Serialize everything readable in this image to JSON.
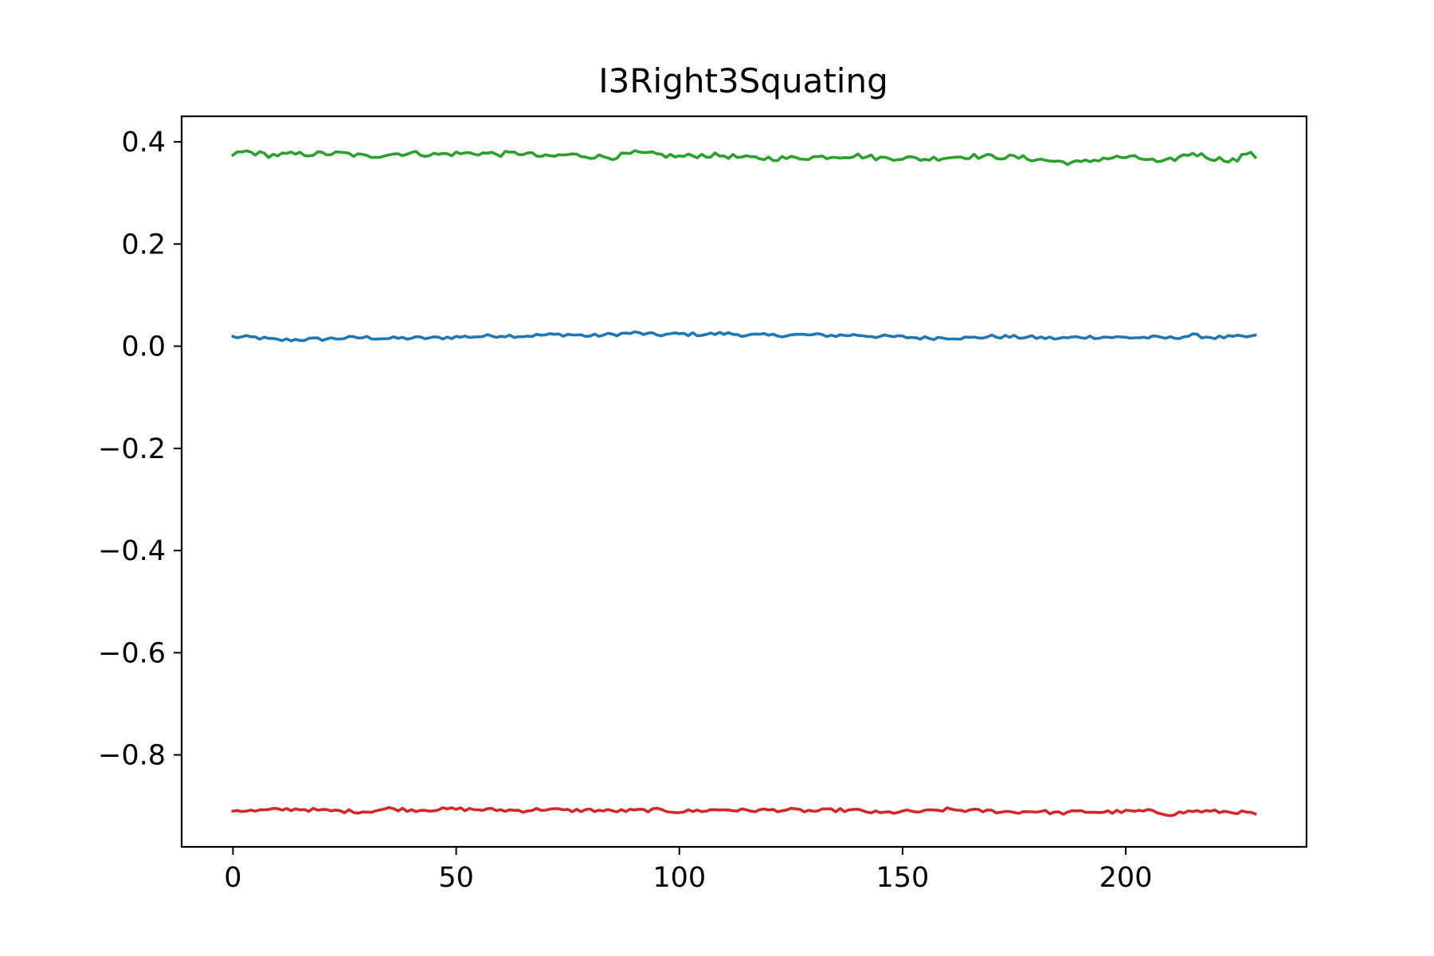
{
  "chart_data": {
    "type": "line",
    "title": "I3Right3Squating",
    "xlabel": "",
    "ylabel": "",
    "xlim": [
      -11.5,
      240.5
    ],
    "ylim": [
      -0.98,
      0.45
    ],
    "x_ticks": [
      0,
      50,
      100,
      150,
      200
    ],
    "x_tick_labels": [
      "0",
      "50",
      "100",
      "150",
      "200"
    ],
    "y_ticks": [
      0.4,
      0.2,
      0.0,
      -0.2,
      -0.4,
      -0.6,
      -0.8
    ],
    "y_tick_labels": [
      "0.4",
      "0.2",
      "0.0",
      "−0.2",
      "−0.4",
      "−0.6",
      "−0.8"
    ],
    "grid": false,
    "legend": "none",
    "x_range": [
      0,
      229
    ],
    "series": [
      {
        "color": "#1f77b4",
        "anchors": [
          [
            0,
            0.018
          ],
          [
            5,
            0.017
          ],
          [
            10,
            0.012
          ],
          [
            15,
            0.013
          ],
          [
            20,
            0.014
          ],
          [
            25,
            0.016
          ],
          [
            30,
            0.017
          ],
          [
            35,
            0.015
          ],
          [
            40,
            0.016
          ],
          [
            45,
            0.016
          ],
          [
            50,
            0.018
          ],
          [
            55,
            0.019
          ],
          [
            60,
            0.021
          ],
          [
            65,
            0.02
          ],
          [
            70,
            0.022
          ],
          [
            75,
            0.023
          ],
          [
            80,
            0.02
          ],
          [
            85,
            0.023
          ],
          [
            90,
            0.026
          ],
          [
            95,
            0.022
          ],
          [
            100,
            0.024
          ],
          [
            105,
            0.023
          ],
          [
            110,
            0.025
          ],
          [
            115,
            0.022
          ],
          [
            120,
            0.021
          ],
          [
            125,
            0.022
          ],
          [
            130,
            0.022
          ],
          [
            135,
            0.021
          ],
          [
            140,
            0.022
          ],
          [
            145,
            0.019
          ],
          [
            150,
            0.018
          ],
          [
            155,
            0.016
          ],
          [
            160,
            0.017
          ],
          [
            165,
            0.016
          ],
          [
            170,
            0.019
          ],
          [
            175,
            0.018
          ],
          [
            180,
            0.017
          ],
          [
            185,
            0.015
          ],
          [
            190,
            0.018
          ],
          [
            195,
            0.018
          ],
          [
            200,
            0.017
          ],
          [
            205,
            0.017
          ],
          [
            210,
            0.016
          ],
          [
            215,
            0.021
          ],
          [
            220,
            0.017
          ],
          [
            225,
            0.018
          ],
          [
            229,
            0.019
          ]
        ],
        "noise": 0.0035
      },
      {
        "color": "#2ca02c",
        "anchors": [
          [
            0,
            0.376
          ],
          [
            3,
            0.381
          ],
          [
            8,
            0.374
          ],
          [
            15,
            0.376
          ],
          [
            25,
            0.377
          ],
          [
            30,
            0.371
          ],
          [
            35,
            0.376
          ],
          [
            40,
            0.378
          ],
          [
            45,
            0.375
          ],
          [
            50,
            0.377
          ],
          [
            55,
            0.378
          ],
          [
            60,
            0.376
          ],
          [
            65,
            0.378
          ],
          [
            70,
            0.37
          ],
          [
            75,
            0.375
          ],
          [
            80,
            0.372
          ],
          [
            85,
            0.37
          ],
          [
            90,
            0.378
          ],
          [
            95,
            0.375
          ],
          [
            100,
            0.371
          ],
          [
            105,
            0.374
          ],
          [
            110,
            0.373
          ],
          [
            115,
            0.368
          ],
          [
            120,
            0.368
          ],
          [
            125,
            0.368
          ],
          [
            130,
            0.37
          ],
          [
            135,
            0.372
          ],
          [
            140,
            0.373
          ],
          [
            145,
            0.368
          ],
          [
            150,
            0.369
          ],
          [
            155,
            0.366
          ],
          [
            160,
            0.37
          ],
          [
            165,
            0.372
          ],
          [
            170,
            0.371
          ],
          [
            175,
            0.37
          ],
          [
            180,
            0.366
          ],
          [
            185,
            0.361
          ],
          [
            190,
            0.359
          ],
          [
            195,
            0.368
          ],
          [
            200,
            0.37
          ],
          [
            205,
            0.366
          ],
          [
            208,
            0.358
          ],
          [
            212,
            0.37
          ],
          [
            215,
            0.378
          ],
          [
            220,
            0.367
          ],
          [
            225,
            0.364
          ],
          [
            227,
            0.379
          ],
          [
            229,
            0.371
          ]
        ],
        "noise": 0.005
      },
      {
        "color": "#d62728",
        "anchors": [
          [
            0,
            -0.908
          ],
          [
            5,
            -0.91
          ],
          [
            10,
            -0.907
          ],
          [
            15,
            -0.906
          ],
          [
            20,
            -0.909
          ],
          [
            25,
            -0.91
          ],
          [
            30,
            -0.911
          ],
          [
            35,
            -0.905
          ],
          [
            40,
            -0.908
          ],
          [
            45,
            -0.907
          ],
          [
            50,
            -0.906
          ],
          [
            55,
            -0.907
          ],
          [
            60,
            -0.908
          ],
          [
            65,
            -0.909
          ],
          [
            70,
            -0.906
          ],
          [
            75,
            -0.909
          ],
          [
            80,
            -0.908
          ],
          [
            85,
            -0.91
          ],
          [
            90,
            -0.909
          ],
          [
            95,
            -0.908
          ],
          [
            100,
            -0.911
          ],
          [
            105,
            -0.909
          ],
          [
            110,
            -0.907
          ],
          [
            115,
            -0.909
          ],
          [
            120,
            -0.908
          ],
          [
            125,
            -0.908
          ],
          [
            130,
            -0.91
          ],
          [
            135,
            -0.908
          ],
          [
            140,
            -0.909
          ],
          [
            145,
            -0.914
          ],
          [
            150,
            -0.911
          ],
          [
            155,
            -0.911
          ],
          [
            160,
            -0.907
          ],
          [
            165,
            -0.909
          ],
          [
            170,
            -0.91
          ],
          [
            175,
            -0.912
          ],
          [
            180,
            -0.91
          ],
          [
            185,
            -0.914
          ],
          [
            190,
            -0.911
          ],
          [
            195,
            -0.912
          ],
          [
            200,
            -0.911
          ],
          [
            205,
            -0.91
          ],
          [
            210,
            -0.916
          ],
          [
            215,
            -0.91
          ],
          [
            220,
            -0.911
          ],
          [
            225,
            -0.912
          ],
          [
            229,
            -0.915
          ]
        ],
        "noise": 0.0035
      }
    ]
  }
}
